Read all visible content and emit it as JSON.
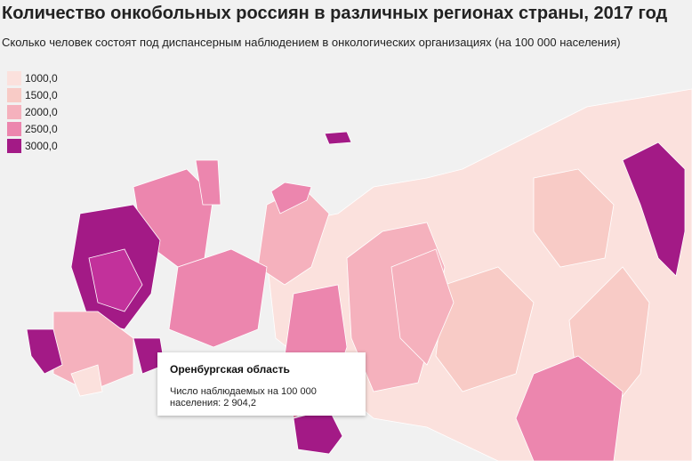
{
  "header": {
    "title": "Количество онкобольных россиян в различных регионах страны, 2017 год",
    "subtitle": "Сколько человек состоят под диспансерным наблюдением в онкологических организациях (на 100 000 населения)"
  },
  "legend": [
    {
      "label": "1000,0",
      "color": "#fbe1dd"
    },
    {
      "label": "1500,0",
      "color": "#f8cbc6"
    },
    {
      "label": "2000,0",
      "color": "#f5b1bd"
    },
    {
      "label": "2500,0",
      "color": "#ec86ae"
    },
    {
      "label": "3000,0",
      "color": "#a31a86"
    }
  ],
  "tooltip": {
    "title": "Оренбургская область",
    "lines": [
      "Число наблюдаемых на 100 000",
      "населения: 2 904,2"
    ]
  }
}
